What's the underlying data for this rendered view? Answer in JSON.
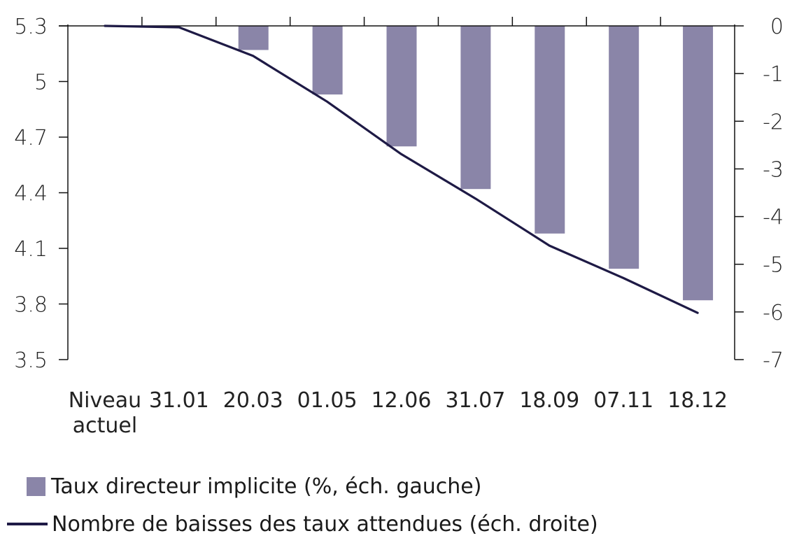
{
  "chart_data": {
    "type": "bar+line",
    "title": "",
    "categories": [
      "Niveau actuel",
      "31.01",
      "20.03",
      "01.05",
      "12.06",
      "31.07",
      "18.09",
      "07.11",
      "18.12"
    ],
    "category_labels": [
      [
        "Niveau",
        "actuel"
      ],
      [
        "31.01"
      ],
      [
        "20.03"
      ],
      [
        "01.05"
      ],
      [
        "12.06"
      ],
      [
        "31.07"
      ],
      [
        "18.09"
      ],
      [
        "07.11"
      ],
      [
        "18.12"
      ]
    ],
    "series": [
      {
        "name": "Taux directeur implicite (%, éch. gauche)",
        "type": "bar",
        "axis": "left",
        "color": "#8a85a8",
        "values": [
          5.3,
          5.3,
          5.17,
          4.93,
          4.65,
          4.42,
          4.18,
          3.99,
          3.82
        ]
      },
      {
        "name": "Nombre de baisses des taux attendues (éch. droite)",
        "type": "line",
        "axis": "right",
        "color": "#1e1a45",
        "values": [
          0,
          -0.03,
          -0.63,
          -1.59,
          -2.69,
          -3.62,
          -4.61,
          -5.29,
          -6.02
        ]
      }
    ],
    "left_axis": {
      "min": 3.5,
      "max": 5.3,
      "ticks": [
        "5.3",
        "5",
        "4.7",
        "4.4",
        "4.1",
        "3.8",
        "3.5"
      ],
      "tick_values": [
        5.3,
        5.0,
        4.7,
        4.4,
        4.1,
        3.8,
        3.5
      ]
    },
    "right_axis": {
      "min": -7,
      "max": 0,
      "ticks": [
        "0",
        "-1",
        "-2",
        "-3",
        "-4",
        "-5",
        "-6",
        "-7"
      ],
      "tick_values": [
        0,
        -1,
        -2,
        -3,
        -4,
        -5,
        -6,
        -7
      ]
    },
    "xlabel": "",
    "ylabel_left": "",
    "ylabel_right": "",
    "grid": false,
    "legend_position": "bottom-left",
    "bars_hang_from_top": true
  },
  "legend": {
    "items": [
      {
        "label": "Taux directeur implicite (%, éch. gauche)",
        "color": "#8a85a8",
        "kind": "bar"
      },
      {
        "label": "Nombre de baisses des taux attendues (éch. droite)",
        "color": "#1e1a45",
        "kind": "line"
      }
    ]
  }
}
